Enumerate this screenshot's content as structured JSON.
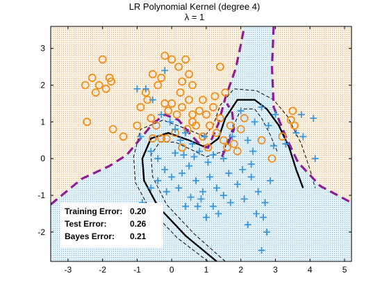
{
  "chart_data": {
    "type": "scatter",
    "title_line1": "LR Polynomial Kernel (degree 4)",
    "title_line2": "λ = 1",
    "xlim": [
      -3.5,
      5.2
    ],
    "ylim": [
      -2.8,
      3.6
    ],
    "xticks": [
      -3,
      -2,
      -1,
      0,
      1,
      2,
      3,
      4,
      5
    ],
    "yticks": [
      -2,
      -1,
      0,
      1,
      2,
      3
    ],
    "grid": false,
    "colors": {
      "orange_class": "#f28e1c",
      "blue_class": "#3a95d8",
      "orange_region": "#f8d9b0",
      "blue_region": "#bfe0f4",
      "decision_boundary": "#000000",
      "bayes_boundary": "#8b1d96"
    },
    "series": [
      {
        "marker": "circle",
        "color": "#f28e1c",
        "points": [
          [
            -2.5,
            2.0
          ],
          [
            -2.3,
            2.2
          ],
          [
            -2.1,
            2.0
          ],
          [
            -2.0,
            2.7
          ],
          [
            -1.9,
            1.9
          ],
          [
            -1.75,
            2.1
          ],
          [
            -2.2,
            1.8
          ],
          [
            -1.8,
            2.2
          ],
          [
            -2.45,
            1.0
          ],
          [
            -1.7,
            0.8
          ],
          [
            -1.4,
            0.6
          ],
          [
            -1.0,
            0.9
          ],
          [
            -0.9,
            1.4
          ],
          [
            -0.75,
            1.8
          ],
          [
            -0.4,
            2.0
          ],
          [
            -0.3,
            2.2
          ],
          [
            -0.2,
            2.8
          ],
          [
            0.0,
            2.7
          ],
          [
            0.2,
            2.5
          ],
          [
            0.3,
            2.1
          ],
          [
            0.4,
            2.7
          ],
          [
            0.5,
            2.3
          ],
          [
            0.6,
            2.0
          ],
          [
            -0.55,
            2.3
          ],
          [
            -0.2,
            1.5
          ],
          [
            -0.1,
            1.3
          ],
          [
            0.0,
            1.5
          ],
          [
            0.15,
            1.2
          ],
          [
            0.3,
            1.4
          ],
          [
            0.5,
            1.6
          ],
          [
            0.6,
            1.2
          ],
          [
            0.7,
            0.9
          ],
          [
            0.8,
            1.3
          ],
          [
            0.9,
            1.6
          ],
          [
            1.0,
            1.2
          ],
          [
            1.1,
            0.9
          ],
          [
            1.2,
            1.4
          ],
          [
            1.3,
            0.7
          ],
          [
            1.4,
            1.1
          ],
          [
            1.5,
            0.5
          ],
          [
            1.6,
            0.3
          ],
          [
            1.7,
            0.9
          ],
          [
            1.8,
            0.4
          ],
          [
            1.9,
            0.2
          ],
          [
            2.0,
            0.8
          ],
          [
            1.25,
            1.7
          ],
          [
            0.9,
            0.6
          ],
          [
            1.05,
            0.3
          ],
          [
            -0.6,
            1.1
          ],
          [
            -0.45,
            0.9
          ],
          [
            -0.3,
            0.55
          ],
          [
            -0.15,
            0.55
          ],
          [
            0.1,
            0.7
          ],
          [
            0.3,
            0.3
          ],
          [
            0.45,
            0.8
          ],
          [
            -0.55,
            0.55
          ],
          [
            1.55,
            1.8
          ],
          [
            2.1,
            1.1
          ],
          [
            2.6,
            0.5
          ],
          [
            2.9,
            0.0
          ],
          [
            3.2,
            0.6
          ],
          [
            3.5,
            1.3
          ],
          [
            3.55,
            0.9
          ],
          [
            3.45,
            1.05
          ],
          [
            0.6,
            1.0
          ],
          [
            -0.7,
            1.6
          ],
          [
            1.4,
            2.5
          ],
          [
            0.25,
            1.8
          ]
        ]
      },
      {
        "marker": "plus",
        "color": "#3a95d8",
        "points": [
          [
            -0.2,
            2.4
          ],
          [
            -0.75,
            1.9
          ],
          [
            -0.55,
            1.6
          ],
          [
            -0.3,
            1.2
          ],
          [
            -0.05,
            1.0
          ],
          [
            0.1,
            0.8
          ],
          [
            0.4,
            0.7
          ],
          [
            0.6,
            0.4
          ],
          [
            0.8,
            0.2
          ],
          [
            0.95,
            0.6
          ],
          [
            1.2,
            0.1
          ],
          [
            -0.6,
            0.2
          ],
          [
            -0.4,
            0.0
          ],
          [
            -0.2,
            -0.3
          ],
          [
            0.0,
            -0.5
          ],
          [
            0.3,
            -0.4
          ],
          [
            0.5,
            -0.2
          ],
          [
            0.7,
            -0.6
          ],
          [
            0.9,
            -0.9
          ],
          [
            1.1,
            -0.5
          ],
          [
            1.3,
            -0.8
          ],
          [
            1.5,
            -1.0
          ],
          [
            1.7,
            -1.2
          ],
          [
            1.9,
            -0.7
          ],
          [
            2.1,
            -1.1
          ],
          [
            2.3,
            -0.5
          ],
          [
            2.5,
            -0.9
          ],
          [
            2.7,
            -1.2
          ],
          [
            2.85,
            -0.6
          ],
          [
            2.45,
            -1.5
          ],
          [
            2.65,
            -1.6
          ],
          [
            2.2,
            -1.8
          ],
          [
            2.75,
            -2.0
          ],
          [
            1.2,
            -1.3
          ],
          [
            1.0,
            -1.6
          ],
          [
            0.85,
            -1.1
          ],
          [
            0.55,
            -1.05
          ],
          [
            0.2,
            -0.8
          ],
          [
            -0.4,
            -0.6
          ],
          [
            -0.85,
            -1.2
          ],
          [
            -0.6,
            -0.8
          ],
          [
            2.2,
            0.5
          ],
          [
            2.4,
            1.0
          ],
          [
            2.6,
            1.4
          ],
          [
            2.8,
            0.9
          ],
          [
            3.0,
            1.2
          ],
          [
            3.3,
            0.4
          ],
          [
            3.6,
            0.7
          ],
          [
            3.75,
            1.2
          ],
          [
            4.1,
            1.1
          ],
          [
            4.15,
            0.0
          ],
          [
            3.8,
            0.6
          ],
          [
            2.0,
            1.3
          ],
          [
            2.35,
            0.2
          ],
          [
            1.75,
            0.6
          ],
          [
            0.35,
            0.1
          ],
          [
            0.1,
            0.15
          ],
          [
            -0.9,
            0.6
          ],
          [
            -1.0,
            1.9
          ],
          [
            1.05,
            -0.1
          ],
          [
            0.65,
            0.05
          ],
          [
            1.5,
            0.0
          ],
          [
            1.65,
            -0.4
          ],
          [
            2.05,
            -0.3
          ],
          [
            0.4,
            -1.3
          ],
          [
            -0.15,
            -0.9
          ],
          [
            0.75,
            -1.3
          ],
          [
            1.35,
            -1.5
          ],
          [
            2.6,
            -2.5
          ],
          [
            0.25,
            0.5
          ],
          [
            2.95,
            0.35
          ],
          [
            2.3,
            -0.15
          ]
        ]
      }
    ],
    "error_summary": [
      {
        "label": "Training Error:",
        "value": "0.20"
      },
      {
        "label": "Test Error:",
        "value": "0.26"
      },
      {
        "label": "Bayes Error:",
        "value": "0.21"
      }
    ]
  }
}
